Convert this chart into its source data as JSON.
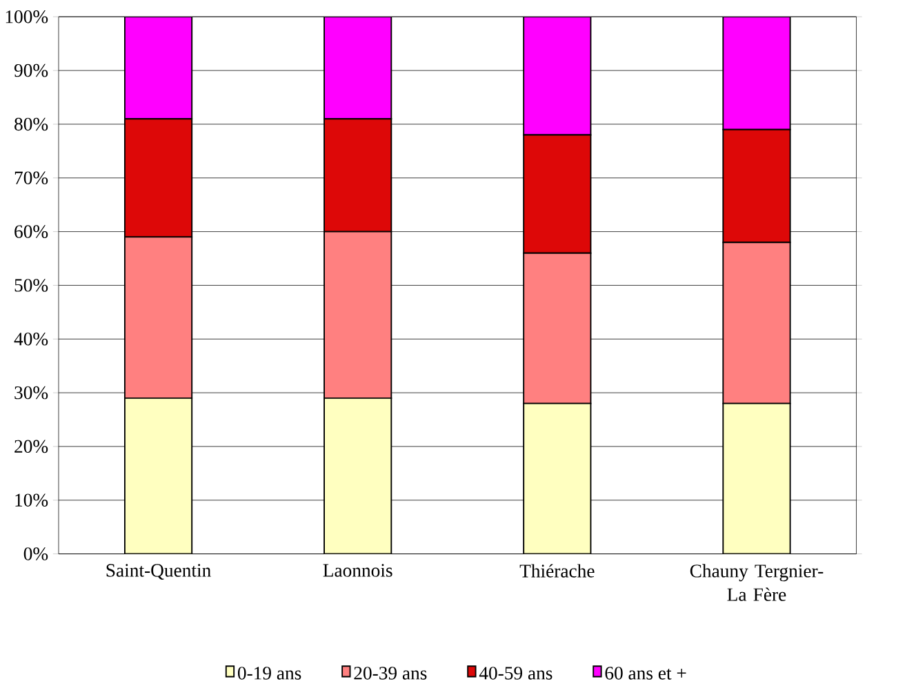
{
  "chart_data": {
    "type": "bar",
    "stacked": true,
    "categories": [
      "Saint-Quentin",
      "Laonnois",
      "Thiérache",
      "Chauny Tergnier-La Fère"
    ],
    "series": [
      {
        "name": "0-19 ans",
        "color": "#ffffc0",
        "values": [
          29,
          29,
          28,
          28
        ]
      },
      {
        "name": "20-39 ans",
        "color": "#ff8080",
        "values": [
          30,
          31,
          28,
          30
        ]
      },
      {
        "name": "40-59 ans",
        "color": "#dd0808",
        "values": [
          22,
          21,
          22,
          21
        ]
      },
      {
        "name": "60 ans et +",
        "color": "#ff00ff",
        "values": [
          19,
          19,
          22,
          21
        ]
      }
    ],
    "ylim": [
      0,
      100
    ],
    "yticks": [
      {
        "value": 0,
        "label": "0%"
      },
      {
        "value": 10,
        "label": "10%"
      },
      {
        "value": 20,
        "label": "20%"
      },
      {
        "value": 30,
        "label": "30%"
      },
      {
        "value": 40,
        "label": "40%"
      },
      {
        "value": 50,
        "label": "50%"
      },
      {
        "value": 60,
        "label": "60%"
      },
      {
        "value": 70,
        "label": "70%"
      },
      {
        "value": 80,
        "label": "80%"
      },
      {
        "value": 90,
        "label": "90%"
      },
      {
        "value": 100,
        "label": "100%"
      }
    ],
    "grid": "y",
    "legend": "bottom"
  }
}
